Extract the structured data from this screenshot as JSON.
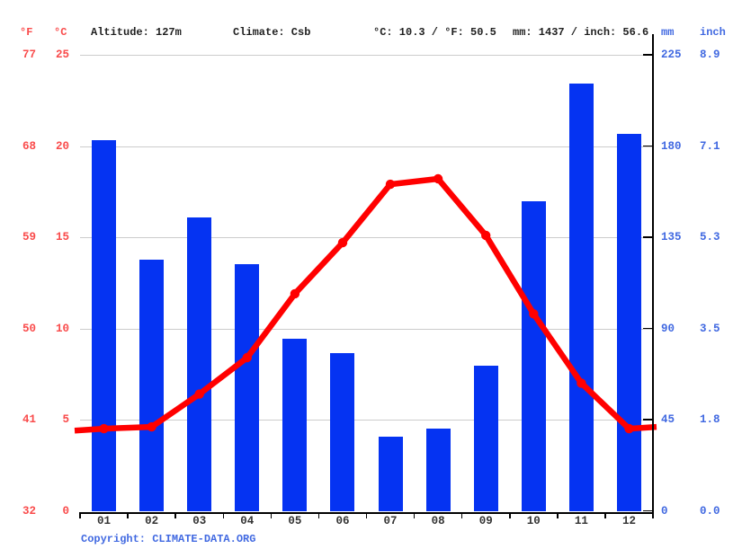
{
  "header": {
    "fahrenheit_label": "°F",
    "celsius_label": "°C",
    "altitude": "Altitude: 127m",
    "climate": "Climate: Csb",
    "temperature_summary": "°C: 10.3 / °F: 50.5",
    "precipitation_summary": "mm: 1437 / inch: 56.6",
    "mm_label": "mm",
    "inch_label": "inch"
  },
  "y_axis_left": {
    "fahrenheit": [
      "77",
      "68",
      "59",
      "50",
      "41",
      "32"
    ],
    "celsius": [
      "25",
      "20",
      "15",
      "10",
      "5",
      "0"
    ]
  },
  "y_axis_right": {
    "mm": [
      "225",
      "180",
      "135",
      "90",
      "45",
      "0"
    ],
    "inch": [
      "8.9",
      "7.1",
      "5.3",
      "3.5",
      "1.8",
      "0.0"
    ]
  },
  "chart_data": {
    "type": "bar+line",
    "categories": [
      "01",
      "02",
      "03",
      "04",
      "05",
      "06",
      "07",
      "08",
      "09",
      "10",
      "11",
      "12"
    ],
    "series": [
      {
        "name": "Precipitation",
        "type": "bar",
        "unit": "mm",
        "axis": "right",
        "values": [
          183,
          124,
          145,
          122,
          85,
          78,
          37,
          41,
          72,
          153,
          211,
          186
        ]
      },
      {
        "name": "Temperature",
        "type": "line",
        "unit": "°C",
        "axis": "left",
        "values": [
          4.5,
          4.6,
          6.4,
          8.4,
          11.9,
          14.7,
          17.9,
          18.2,
          15.1,
          10.8,
          7.0,
          4.5
        ],
        "edge_start": 4.4,
        "edge_end": 4.6
      }
    ],
    "left_axis": {
      "label": "°C",
      "min": 0,
      "max": 25,
      "ticks": [
        25,
        20,
        15,
        10,
        5,
        0
      ]
    },
    "right_axis": {
      "label": "mm",
      "min": 0,
      "max": 225,
      "ticks": [
        225,
        180,
        135,
        90,
        45,
        0
      ]
    },
    "grid": true,
    "legend": "none",
    "annual_mean_temp_c": 10.3,
    "annual_precip_mm": 1437
  },
  "footer": {
    "copyright": "Copyright: CLIMATE-DATA.ORG"
  },
  "colors": {
    "bar": "#0533f2",
    "line": "#ff0000",
    "left_axis_text": "#f94b4b",
    "right_axis_text": "#4169e1",
    "header_text": "#1f1f1f",
    "month_text": "#333333",
    "copyright_text": "#4169e1",
    "gridline": "#cccccc",
    "axis_line": "#000000"
  }
}
